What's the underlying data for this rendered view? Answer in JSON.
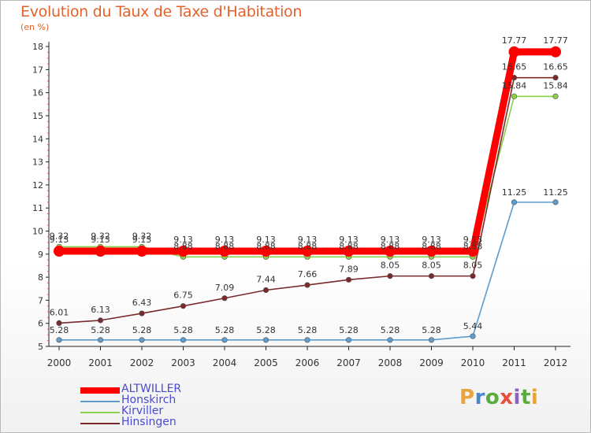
{
  "title": "Evolution du Taux de Taxe d'Habitation",
  "unit": "(en %)",
  "logo": {
    "letters": [
      "P",
      "r",
      "o",
      "x",
      "i",
      "t",
      "i"
    ],
    "colors": [
      "#e8a33a",
      "#4a86c8",
      "#5aac3c",
      "#e8503a",
      "#8a63c0",
      "#5aac3c",
      "#e8a33a"
    ]
  },
  "chart_data": {
    "type": "line",
    "title": "Evolution du Taux de Taxe d'Habitation",
    "ylabel": "(en %)",
    "xlabel": "",
    "ylim": [
      5,
      18
    ],
    "yticks": [
      5,
      6,
      7,
      8,
      9,
      10,
      11,
      12,
      13,
      14,
      15,
      16,
      17,
      18
    ],
    "categories": [
      "2000",
      "2001",
      "2002",
      "2003",
      "2004",
      "2005",
      "2006",
      "2007",
      "2008",
      "2009",
      "2010",
      "2011",
      "2012"
    ],
    "series": [
      {
        "name": "ALTWILLER",
        "color": "#ff0000",
        "values": [
          9.13,
          9.13,
          9.13,
          9.13,
          9.13,
          9.13,
          9.13,
          9.13,
          9.13,
          9.13,
          9.13,
          17.77,
          17.77
        ],
        "labels": [
          "9.13",
          "9.13",
          "9.13",
          "9.13",
          "9.13",
          "9.13",
          "9.13",
          "9.13",
          "9.13",
          "9.13",
          "9.13",
          "17.77",
          "17.77"
        ]
      },
      {
        "name": "Honskirch",
        "color": "#5d9ccc",
        "values": [
          5.28,
          5.28,
          5.28,
          5.28,
          5.28,
          5.28,
          5.28,
          5.28,
          5.28,
          5.28,
          5.44,
          11.25,
          11.25
        ],
        "labels": [
          "5.28",
          "5.28",
          "5.28",
          "5.28",
          "5.28",
          "5.28",
          "5.28",
          "5.28",
          "5.28",
          "5.28",
          "5.44",
          "11.25",
          "11.25"
        ]
      },
      {
        "name": "Kirviller",
        "color": "#8bd04a",
        "values": [
          9.32,
          9.32,
          9.32,
          8.88,
          8.88,
          8.88,
          8.88,
          8.88,
          8.88,
          8.88,
          8.88,
          15.84,
          15.84
        ],
        "labels": [
          "9.32",
          "9.32",
          "9.32",
          "8.88",
          "8.88",
          "8.88",
          "8.88",
          "8.88",
          "8.88",
          "8.88",
          "8.88",
          "15.84",
          "15.84"
        ]
      },
      {
        "name": "Hinsingen",
        "color": "#7a2a2a",
        "values": [
          6.01,
          6.13,
          6.43,
          6.75,
          7.09,
          7.44,
          7.66,
          7.89,
          8.05,
          8.05,
          8.05,
          16.65,
          16.65
        ],
        "labels": [
          "6.01",
          "6.13",
          "6.43",
          "6.75",
          "7.09",
          "7.44",
          "7.66",
          "7.89",
          "8.05",
          "8.05",
          "8.05",
          "16.65",
          "16.65"
        ]
      }
    ],
    "legend_position": "bottom-left",
    "grid": false
  }
}
